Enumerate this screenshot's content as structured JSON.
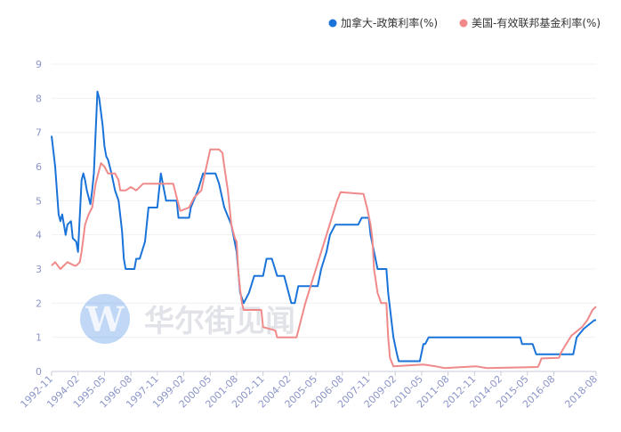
{
  "watermark": {
    "text": "华尔街见闻",
    "logo_letter": "W",
    "logo_color": "#2f7fe0"
  },
  "chart_data": {
    "type": "line",
    "title": "",
    "xlabel": "",
    "ylabel": "",
    "x_range": [
      "1992-11",
      "2018-08"
    ],
    "ylim": [
      0,
      9
    ],
    "y_ticks": [
      0,
      1,
      2,
      3,
      4,
      5,
      6,
      7,
      8,
      9
    ],
    "x_ticks": [
      "1992-11",
      "1994-02",
      "1995-05",
      "1996-08",
      "1997-11",
      "1999-02",
      "2000-05",
      "2001-08",
      "2002-11",
      "2004-02",
      "2005-05",
      "2006-08",
      "2007-11",
      "2009-02",
      "2010-05",
      "2011-08",
      "2012-11",
      "2014-02",
      "2015-05",
      "2016-08",
      "2018-08"
    ],
    "grid": "horizontal",
    "legend_position": "top-right",
    "series": [
      {
        "name": "加拿大-政策利率(%)",
        "color": "#1a73d9",
        "points": [
          [
            "1992-11",
            6.9
          ],
          [
            "1993-01",
            6.0
          ],
          [
            "1993-03",
            4.6
          ],
          [
            "1993-04",
            4.4
          ],
          [
            "1993-05",
            4.6
          ],
          [
            "1993-07",
            4.0
          ],
          [
            "1993-08",
            4.3
          ],
          [
            "1993-10",
            4.4
          ],
          [
            "1993-11",
            3.9
          ],
          [
            "1994-01",
            3.8
          ],
          [
            "1994-02",
            3.5
          ],
          [
            "1994-04",
            5.6
          ],
          [
            "1994-05",
            5.8
          ],
          [
            "1994-06",
            5.6
          ],
          [
            "1994-07",
            5.3
          ],
          [
            "1994-09",
            4.9
          ],
          [
            "1994-10",
            5.3
          ],
          [
            "1994-11",
            5.8
          ],
          [
            "1995-01",
            8.2
          ],
          [
            "1995-02",
            8.0
          ],
          [
            "1995-04",
            7.2
          ],
          [
            "1995-05",
            6.6
          ],
          [
            "1995-06",
            6.3
          ],
          [
            "1995-07",
            6.2
          ],
          [
            "1995-08",
            6.0
          ],
          [
            "1995-09",
            5.8
          ],
          [
            "1995-11",
            5.3
          ],
          [
            "1996-01",
            5.0
          ],
          [
            "1996-03",
            4.1
          ],
          [
            "1996-04",
            3.3
          ],
          [
            "1996-05",
            3.0
          ],
          [
            "1996-10",
            3.0
          ],
          [
            "1996-11",
            3.3
          ],
          [
            "1997-01",
            3.3
          ],
          [
            "1997-04",
            3.8
          ],
          [
            "1997-06",
            4.8
          ],
          [
            "1997-11",
            4.8
          ],
          [
            "1998-01",
            5.8
          ],
          [
            "1998-04",
            5.0
          ],
          [
            "1998-10",
            5.0
          ],
          [
            "1998-11",
            4.5
          ],
          [
            "1999-05",
            4.5
          ],
          [
            "1999-06",
            4.8
          ],
          [
            "1999-10",
            5.3
          ],
          [
            "2000-01",
            5.8
          ],
          [
            "2000-08",
            5.8
          ],
          [
            "2000-10",
            5.5
          ],
          [
            "2001-01",
            4.8
          ],
          [
            "2001-05",
            4.3
          ],
          [
            "2001-08",
            3.5
          ],
          [
            "2001-10",
            2.3
          ],
          [
            "2001-12",
            2.0
          ],
          [
            "2002-03",
            2.3
          ],
          [
            "2002-06",
            2.8
          ],
          [
            "2002-11",
            2.8
          ],
          [
            "2003-01",
            3.3
          ],
          [
            "2003-04",
            3.3
          ],
          [
            "2003-07",
            2.8
          ],
          [
            "2003-11",
            2.8
          ],
          [
            "2004-03",
            2.0
          ],
          [
            "2004-05",
            2.0
          ],
          [
            "2004-07",
            2.5
          ],
          [
            "2005-06",
            2.5
          ],
          [
            "2005-08",
            3.0
          ],
          [
            "2005-11",
            3.5
          ],
          [
            "2006-01",
            4.0
          ],
          [
            "2006-04",
            4.3
          ],
          [
            "2007-05",
            4.3
          ],
          [
            "2007-07",
            4.5
          ],
          [
            "2007-11",
            4.5
          ],
          [
            "2007-12",
            4.0
          ],
          [
            "2008-04",
            3.0
          ],
          [
            "2008-09",
            3.0
          ],
          [
            "2008-10",
            2.3
          ],
          [
            "2009-01",
            1.0
          ],
          [
            "2009-03",
            0.5
          ],
          [
            "2009-04",
            0.3
          ],
          [
            "2010-04",
            0.3
          ],
          [
            "2010-06",
            0.8
          ],
          [
            "2010-07",
            0.8
          ],
          [
            "2010-09",
            1.0
          ],
          [
            "2015-01",
            1.0
          ],
          [
            "2015-02",
            0.8
          ],
          [
            "2015-08",
            0.8
          ],
          [
            "2015-10",
            0.5
          ],
          [
            "2017-07",
            0.5
          ],
          [
            "2017-09",
            1.0
          ],
          [
            "2018-01",
            1.25
          ],
          [
            "2018-07",
            1.5
          ],
          [
            "2018-08",
            1.5
          ]
        ]
      },
      {
        "name": "美国-有效联邦基金利率(%)",
        "color": "#f08a8a",
        "points": [
          [
            "1992-11",
            3.1
          ],
          [
            "1993-01",
            3.2
          ],
          [
            "1993-04",
            3.0
          ],
          [
            "1993-08",
            3.2
          ],
          [
            "1993-12",
            3.1
          ],
          [
            "1994-01",
            3.1
          ],
          [
            "1994-03",
            3.2
          ],
          [
            "1994-04",
            3.5
          ],
          [
            "1994-06",
            4.3
          ],
          [
            "1994-08",
            4.6
          ],
          [
            "1994-10",
            4.8
          ],
          [
            "1994-12",
            5.5
          ],
          [
            "1995-02",
            5.9
          ],
          [
            "1995-03",
            6.1
          ],
          [
            "1995-05",
            6.0
          ],
          [
            "1995-07",
            5.8
          ],
          [
            "1995-11",
            5.8
          ],
          [
            "1996-01",
            5.6
          ],
          [
            "1996-02",
            5.3
          ],
          [
            "1996-05",
            5.3
          ],
          [
            "1996-08",
            5.4
          ],
          [
            "1996-11",
            5.3
          ],
          [
            "1997-03",
            5.5
          ],
          [
            "1997-09",
            5.5
          ],
          [
            "1998-03",
            5.5
          ],
          [
            "1998-08",
            5.5
          ],
          [
            "1998-10",
            5.1
          ],
          [
            "1998-12",
            4.7
          ],
          [
            "1999-05",
            4.8
          ],
          [
            "1999-08",
            5.1
          ],
          [
            "1999-12",
            5.3
          ],
          [
            "2000-02",
            5.8
          ],
          [
            "2000-05",
            6.5
          ],
          [
            "2000-06",
            6.5
          ],
          [
            "2000-10",
            6.5
          ],
          [
            "2000-12",
            6.4
          ],
          [
            "2001-01",
            6.0
          ],
          [
            "2001-03",
            5.3
          ],
          [
            "2001-05",
            4.3
          ],
          [
            "2001-07",
            3.9
          ],
          [
            "2001-08",
            3.8
          ],
          [
            "2001-09",
            2.9
          ],
          [
            "2001-10",
            2.4
          ],
          [
            "2001-11",
            2.0
          ],
          [
            "2001-12",
            1.8
          ],
          [
            "2002-10",
            1.8
          ],
          [
            "2002-11",
            1.3
          ],
          [
            "2003-06",
            1.2
          ],
          [
            "2003-07",
            1.0
          ],
          [
            "2004-06",
            1.0
          ],
          [
            "2004-08",
            1.4
          ],
          [
            "2004-11",
            2.0
          ],
          [
            "2005-02",
            2.5
          ],
          [
            "2005-05",
            3.0
          ],
          [
            "2005-08",
            3.5
          ],
          [
            "2005-11",
            4.0
          ],
          [
            "2006-02",
            4.5
          ],
          [
            "2006-05",
            5.0
          ],
          [
            "2006-07",
            5.25
          ],
          [
            "2007-08",
            5.2
          ],
          [
            "2007-10",
            4.8
          ],
          [
            "2007-12",
            4.3
          ],
          [
            "2008-01",
            3.9
          ],
          [
            "2008-02",
            3.0
          ],
          [
            "2008-04",
            2.3
          ],
          [
            "2008-06",
            2.0
          ],
          [
            "2008-09",
            2.0
          ],
          [
            "2008-10",
            1.0
          ],
          [
            "2008-11",
            0.4
          ],
          [
            "2009-01",
            0.15
          ],
          [
            "2010-06",
            0.2
          ],
          [
            "2011-01",
            0.15
          ],
          [
            "2011-06",
            0.1
          ],
          [
            "2012-12",
            0.15
          ],
          [
            "2013-06",
            0.1
          ],
          [
            "2015-03",
            0.12
          ],
          [
            "2015-11",
            0.13
          ],
          [
            "2015-12",
            0.24
          ],
          [
            "2016-01",
            0.38
          ],
          [
            "2016-11",
            0.4
          ],
          [
            "2016-12",
            0.54
          ],
          [
            "2017-03",
            0.8
          ],
          [
            "2017-06",
            1.05
          ],
          [
            "2017-12",
            1.3
          ],
          [
            "2018-03",
            1.5
          ],
          [
            "2018-06",
            1.8
          ],
          [
            "2018-08",
            1.9
          ]
        ]
      }
    ]
  }
}
